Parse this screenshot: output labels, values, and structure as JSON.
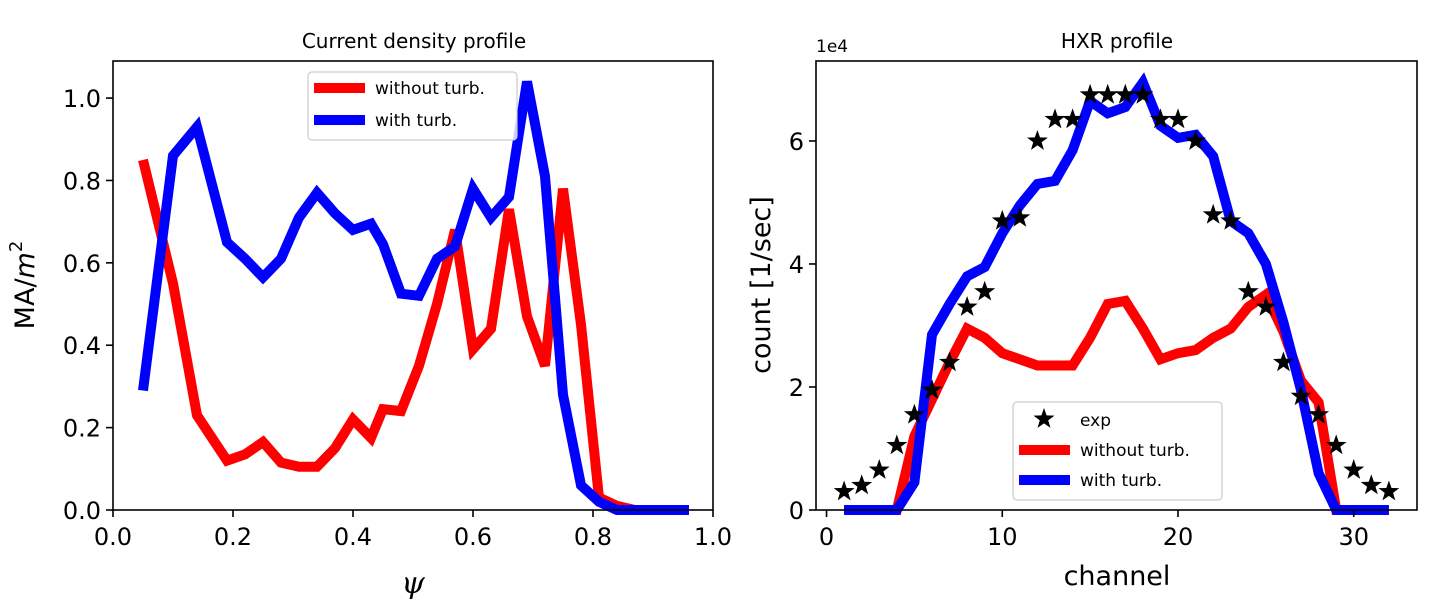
{
  "chart_data": [
    {
      "type": "line",
      "title": "Current density profile",
      "xlabel": "ψ",
      "ylabel": "MA/m2",
      "xlim": [
        0.0,
        1.0
      ],
      "ylim": [
        0.0,
        1.09
      ],
      "xticks": [
        0.0,
        0.2,
        0.4,
        0.6,
        0.8,
        1.0
      ],
      "yticks": [
        0.0,
        0.2,
        0.4,
        0.6,
        0.8,
        1.0
      ],
      "xtick_labels": [
        "0.0",
        "0.2",
        "0.4",
        "0.6",
        "0.8",
        "1.0"
      ],
      "ytick_labels": [
        "0.0",
        "0.2",
        "0.4",
        "0.6",
        "0.8",
        "1.0"
      ],
      "legend_position": "top-center",
      "series": [
        {
          "name": "without turb.",
          "color": "#ff0000",
          "x": [
            0.05,
            0.1,
            0.14,
            0.19,
            0.22,
            0.25,
            0.28,
            0.31,
            0.34,
            0.37,
            0.4,
            0.43,
            0.45,
            0.48,
            0.51,
            0.54,
            0.57,
            0.6,
            0.63,
            0.66,
            0.69,
            0.72,
            0.75,
            0.78,
            0.81,
            0.84,
            0.87,
            0.9,
            0.93,
            0.96
          ],
          "values": [
            0.85,
            0.55,
            0.23,
            0.12,
            0.135,
            0.165,
            0.115,
            0.105,
            0.105,
            0.15,
            0.22,
            0.175,
            0.245,
            0.24,
            0.35,
            0.5,
            0.68,
            0.39,
            0.44,
            0.73,
            0.47,
            0.35,
            0.78,
            0.45,
            0.03,
            0.01,
            0.0,
            0.0,
            0.0,
            0.0
          ]
        },
        {
          "name": "with turb.",
          "color": "#0000ff",
          "x": [
            0.05,
            0.1,
            0.14,
            0.19,
            0.22,
            0.25,
            0.28,
            0.31,
            0.34,
            0.37,
            0.4,
            0.43,
            0.45,
            0.48,
            0.51,
            0.54,
            0.57,
            0.6,
            0.63,
            0.66,
            0.69,
            0.72,
            0.75,
            0.78,
            0.81,
            0.84,
            0.87,
            0.9,
            0.93,
            0.96
          ],
          "values": [
            0.29,
            0.86,
            0.93,
            0.65,
            0.61,
            0.565,
            0.61,
            0.71,
            0.77,
            0.72,
            0.68,
            0.695,
            0.645,
            0.525,
            0.52,
            0.61,
            0.64,
            0.78,
            0.71,
            0.76,
            1.04,
            0.81,
            0.28,
            0.06,
            0.02,
            0.0,
            0.0,
            0.0,
            0.0,
            0.0
          ]
        }
      ]
    },
    {
      "type": "line",
      "title": "HXR profile",
      "xlabel": "channel",
      "ylabel": "count [1/sec]",
      "scale_note": "1e4",
      "xlim": [
        -0.6,
        33.6
      ],
      "ylim": [
        0,
        7.3
      ],
      "xticks": [
        0,
        10,
        20,
        30
      ],
      "yticks": [
        0,
        2,
        4,
        6
      ],
      "xtick_labels": [
        "0",
        "10",
        "20",
        "30"
      ],
      "ytick_labels": [
        "0",
        "2",
        "4",
        "6"
      ],
      "legend_position": "lower-center",
      "scatter": {
        "name": "exp",
        "color": "#000000",
        "marker": "star",
        "x": [
          1,
          2,
          3,
          4,
          5,
          6,
          7,
          8,
          9,
          10,
          11,
          12,
          13,
          14,
          15,
          16,
          17,
          18,
          19,
          20,
          21,
          22,
          23,
          24,
          25,
          26,
          27,
          28,
          29,
          30,
          31,
          32
        ],
        "values": [
          0.3,
          0.4,
          0.65,
          1.05,
          1.55,
          1.95,
          2.4,
          3.3,
          3.55,
          4.7,
          4.75,
          6.0,
          6.35,
          6.35,
          6.75,
          6.75,
          6.75,
          6.75,
          6.35,
          6.35,
          6.0,
          4.8,
          4.7,
          3.55,
          3.3,
          2.4,
          1.85,
          1.55,
          1.05,
          0.65,
          0.4,
          0.3
        ]
      },
      "series": [
        {
          "name": "without turb.",
          "color": "#ff0000",
          "x": [
            1,
            2,
            3,
            4,
            5,
            6,
            7,
            8,
            9,
            10,
            11,
            12,
            13,
            14,
            15,
            16,
            17,
            18,
            19,
            20,
            21,
            22,
            23,
            24,
            25,
            26,
            27,
            28,
            29,
            30,
            31,
            32
          ],
          "values": [
            0,
            0,
            0,
            0,
            1.2,
            1.8,
            2.4,
            2.95,
            2.8,
            2.55,
            2.45,
            2.35,
            2.35,
            2.35,
            2.8,
            3.35,
            3.4,
            2.95,
            2.45,
            2.55,
            2.6,
            2.8,
            2.95,
            3.3,
            3.5,
            2.9,
            2.1,
            1.75,
            0,
            0,
            0,
            0
          ]
        },
        {
          "name": "with turb.",
          "color": "#0000ff",
          "x": [
            1,
            2,
            3,
            4,
            5,
            6,
            7,
            8,
            9,
            10,
            11,
            12,
            13,
            14,
            15,
            16,
            17,
            18,
            19,
            20,
            21,
            22,
            23,
            24,
            25,
            26,
            27,
            28,
            29,
            30,
            31,
            32
          ],
          "values": [
            0,
            0,
            0,
            0,
            0.45,
            2.85,
            3.35,
            3.8,
            3.95,
            4.5,
            4.95,
            5.3,
            5.35,
            5.85,
            6.65,
            6.45,
            6.55,
            6.95,
            6.25,
            6.05,
            6.1,
            5.75,
            4.7,
            4.5,
            4.0,
            3.05,
            1.95,
            0.6,
            0,
            0,
            0,
            0
          ]
        }
      ]
    }
  ]
}
